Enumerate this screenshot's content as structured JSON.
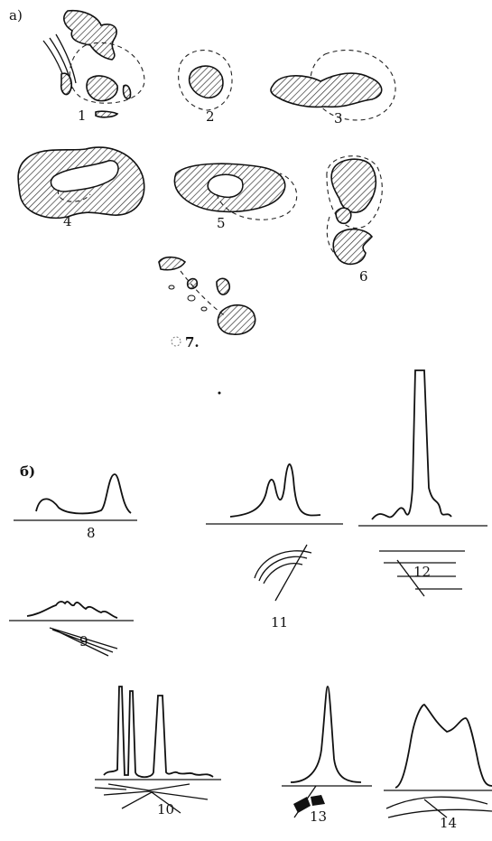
{
  "panel_a": "a)",
  "panel_b": "б)",
  "figures": [
    "1",
    "2",
    "3",
    "4",
    "5",
    "6",
    "7.",
    "8",
    "9",
    "10",
    "11",
    "12",
    "13",
    "14"
  ]
}
